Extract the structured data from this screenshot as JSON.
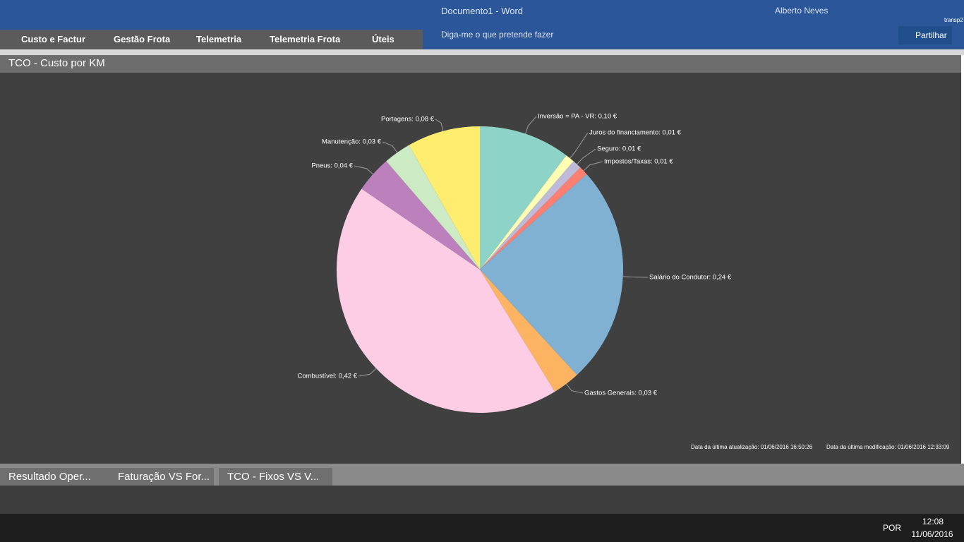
{
  "window": {
    "title": "Documento1 - Word",
    "user": "Alberto Neves",
    "tell_me": "Diga-me o que pretende fazer",
    "share": "Partilhar",
    "account": "transp2"
  },
  "menu": [
    "Custo e Factur",
    "Gestão Frota",
    "Telemetria",
    "Telemetria Frota",
    "Úteis"
  ],
  "panel": {
    "title": "TCO - Custo por KM",
    "last_update": "Data da última atualização: 01/06/2016 16:50:26",
    "last_modified": "Data da última modificação: 01/06/2016 12:33:09"
  },
  "chart_data": {
    "type": "pie",
    "values": [
      0.1,
      0.01,
      0.01,
      0.01,
      0.24,
      0.03,
      0.42,
      0.04,
      0.03,
      0.08
    ],
    "value_labels": [
      "Inversão = PA - VR: 0,10 €",
      "Juros do financiamento: 0,01 €",
      "Seguro: 0,01 €",
      "Impostos/Taxas: 0,01 €",
      "Salário do Condutor: 0,24 €",
      "Gastos Generais: 0,03 €",
      "Combustível: 0,42 €",
      "Pneus: 0,04 €",
      "Manutenção: 0,03 €",
      "Portagens: 0,08 €"
    ],
    "colors": [
      "#8dd3c7",
      "#ffffb3",
      "#bebada",
      "#fb8072",
      "#80b1d3",
      "#fdb462",
      "#fccde5",
      "#bc80bd",
      "#ccebc5",
      "#ffed6f"
    ]
  },
  "tabs": [
    "Resultado Oper...",
    "Faturação VS For...",
    "TCO - Fixos VS V..."
  ],
  "taskbar": {
    "language": "POR",
    "time": "12:08",
    "date": "11/06/2016"
  }
}
